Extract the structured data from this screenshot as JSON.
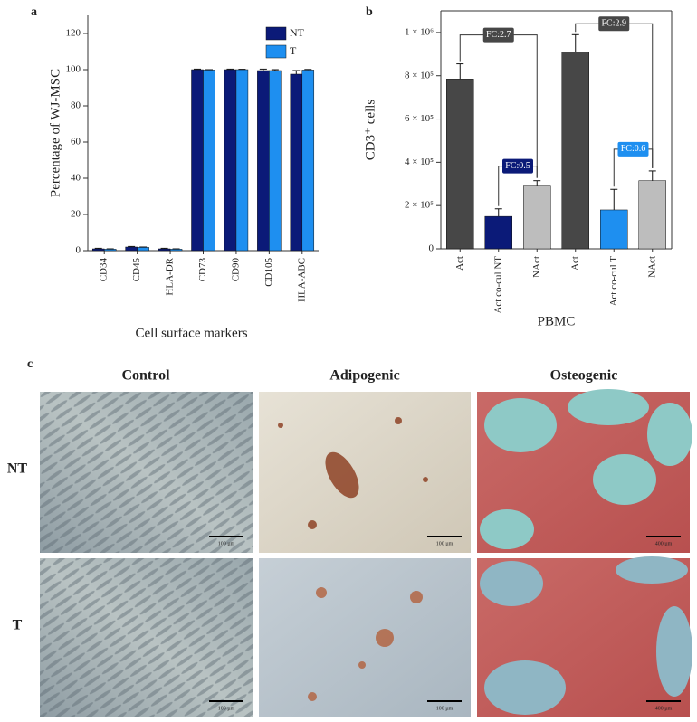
{
  "chart_data": [
    {
      "type": "bar",
      "panel_label": "a",
      "y_label": "Percentage of WJ-MSC",
      "x_label": "Cell surface markers",
      "categories": [
        "CD34",
        "CD45",
        "HLA-DR",
        "CD73",
        "CD90",
        "CD105",
        "HLA-ABC"
      ],
      "series": [
        {
          "name": "NT",
          "color": "#0b1a78",
          "values": [
            1,
            2,
            1,
            100,
            100,
            99.5,
            97.5
          ],
          "errors": [
            0.3,
            0.3,
            0.3,
            0.3,
            0.3,
            0.8,
            2
          ]
        },
        {
          "name": "T",
          "color": "#1e8ff0",
          "values": [
            0.8,
            1.8,
            0.8,
            99.8,
            100,
            99.5,
            99.8
          ],
          "errors": [
            0.2,
            0.2,
            0.2,
            0.2,
            0.2,
            0.5,
            0.3
          ]
        }
      ],
      "ylim": [
        0,
        130
      ],
      "yticks": [
        0,
        20,
        40,
        60,
        80,
        100,
        120
      ],
      "legend": "upper right"
    },
    {
      "type": "bar",
      "panel_label": "b",
      "y_label": "CD3⁺ cells",
      "x_label": "PBMC",
      "categories": [
        "Act",
        "Act co-cul NT",
        "NAct",
        "Act",
        "Act co-cul T",
        "NAct"
      ],
      "values": [
        785000,
        150000,
        290000,
        910000,
        180000,
        315000
      ],
      "errors": [
        70000,
        35000,
        25000,
        80000,
        95000,
        45000
      ],
      "colors": [
        "#474747",
        "#0b1a78",
        "#bdbdbd",
        "#474747",
        "#1e8ff0",
        "#bdbdbd"
      ],
      "ylim": [
        0,
        1100000
      ],
      "yticks": [
        0,
        {
          "value": 200000,
          "label": "2 × 10⁵"
        },
        {
          "value": 400000,
          "label": "4 × 10⁵"
        },
        {
          "value": 600000,
          "label": "6 × 10⁵"
        },
        {
          "value": 800000,
          "label": "8 × 10⁵"
        },
        {
          "value": 1000000,
          "label": "1 × 10⁶"
        }
      ],
      "annotations": [
        {
          "text": "FC:2.7",
          "color": "#474747"
        },
        {
          "text": "FC:0.5",
          "color": "#0b1a78"
        },
        {
          "text": "FC:2.9",
          "color": "#474747"
        },
        {
          "text": "FC:0.6",
          "color": "#1e8ff0"
        }
      ]
    }
  ],
  "panel_c": {
    "panel_label": "c",
    "columns": [
      "Control",
      "Adipogenic",
      "Osteogenic"
    ],
    "rows": [
      "NT",
      "T"
    ],
    "scale_bars": [
      [
        "100 µm",
        "100 µm",
        "400 µm"
      ],
      [
        "100 µm",
        "100 µm",
        "400 µm"
      ]
    ]
  }
}
